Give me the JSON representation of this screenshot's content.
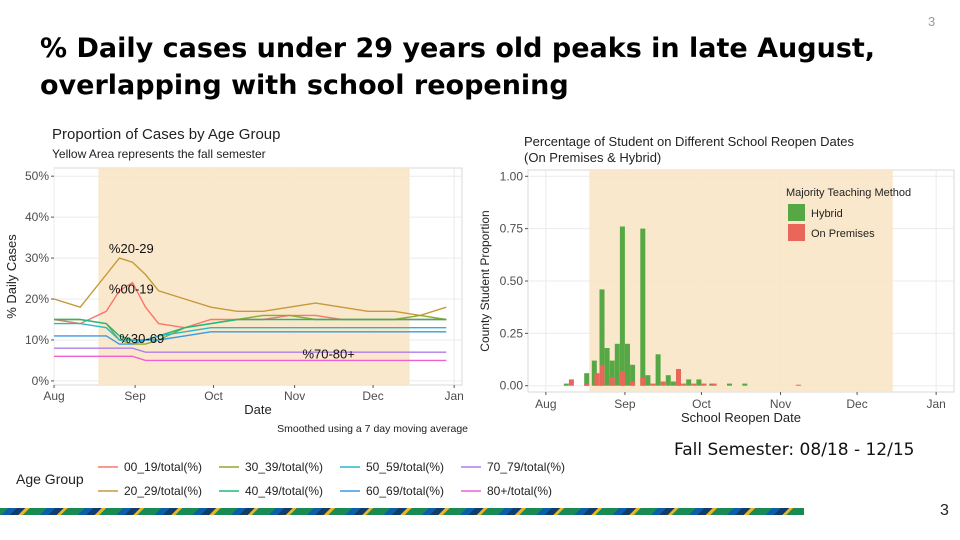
{
  "slide": {
    "number_top": "3",
    "number_bottom": "3"
  },
  "title": {
    "line1": "% Daily cases under 29 years old peaks in late August,",
    "line2": "overlapping with school reopening"
  },
  "note": "Fall Semester: 08/18 - 12/15",
  "colors": {
    "shade": "#fae6c8",
    "hybrid": "#55a844",
    "on_premises": "#e8675a",
    "panel": "#ffffff",
    "grid": "#ebebeb"
  },
  "chart_data": [
    {
      "type": "line",
      "title": "Proportion of Cases by Age Group",
      "subtitle": "Yellow Area represents the fall semester",
      "xlabel": "Date",
      "ylabel": "% Daily Cases",
      "caption": "Smoothed using a 7 day moving average",
      "xlim": [
        0,
        156
      ],
      "ylim": [
        -1,
        52
      ],
      "x_ticks": [
        {
          "v": 0,
          "label": "Aug"
        },
        {
          "v": 31,
          "label": "Sep"
        },
        {
          "v": 61,
          "label": "Oct"
        },
        {
          "v": 92,
          "label": "Nov"
        },
        {
          "v": 122,
          "label": "Dec"
        },
        {
          "v": 153,
          "label": "Jan"
        }
      ],
      "y_ticks": [
        {
          "v": 0,
          "label": "0%"
        },
        {
          "v": 10,
          "label": "10%"
        },
        {
          "v": 20,
          "label": "20%"
        },
        {
          "v": 30,
          "label": "30%"
        },
        {
          "v": 40,
          "label": "40%"
        },
        {
          "v": 50,
          "label": "50%"
        }
      ],
      "shaded_region": [
        17,
        136
      ],
      "legend_title": "Age Group",
      "annotations": [
        {
          "text": "%20-29",
          "x": 21,
          "y": 31.3
        },
        {
          "text": "%00-19",
          "x": 21,
          "y": 21.3
        },
        {
          "text": "%30-69",
          "x": 25,
          "y": 9.3
        },
        {
          "text": "%70-80+",
          "x": 95,
          "y": 5.5
        }
      ],
      "x": [
        0,
        10,
        20,
        25,
        30,
        35,
        40,
        50,
        60,
        70,
        80,
        90,
        100,
        110,
        120,
        130,
        140,
        150
      ],
      "series": [
        {
          "name": "00_19/total(%)",
          "color": "#f8766d",
          "values": [
            15,
            14,
            17,
            22,
            24,
            18,
            14,
            13,
            15,
            15,
            15,
            16,
            16,
            15,
            15,
            15,
            15,
            15
          ]
        },
        {
          "name": "20_29/total(%)",
          "color": "#c49a3a",
          "values": [
            20,
            18,
            26,
            30,
            29,
            26,
            22,
            20,
            18,
            17,
            17,
            18,
            19,
            18,
            17,
            17,
            16,
            18
          ]
        },
        {
          "name": "30_39/total(%)",
          "color": "#8eaa2a",
          "values": [
            15,
            15,
            14,
            10,
            9,
            9,
            10,
            13,
            14,
            15,
            16,
            16,
            15,
            15,
            15,
            15,
            16,
            15
          ]
        },
        {
          "name": "40_49/total(%)",
          "color": "#21b87a",
          "values": [
            15,
            15,
            14,
            11,
            10,
            10,
            11,
            13,
            14,
            15,
            15,
            15,
            15,
            15,
            15,
            15,
            15,
            15
          ]
        },
        {
          "name": "50_59/total(%)",
          "color": "#2ab8c8",
          "values": [
            14,
            14,
            13,
            10,
            10,
            10,
            11,
            12,
            13,
            13,
            13,
            13,
            13,
            13,
            13,
            13,
            13,
            13
          ]
        },
        {
          "name": "60_69/total(%)",
          "color": "#3a9ae0",
          "values": [
            11,
            11,
            11,
            9,
            9,
            10,
            10,
            11,
            12,
            12,
            12,
            12,
            12,
            12,
            12,
            12,
            12,
            12
          ]
        },
        {
          "name": "70_79/total(%)",
          "color": "#b17ee8",
          "values": [
            8,
            8,
            8,
            8,
            8,
            7,
            7,
            7,
            7,
            7,
            7,
            7,
            7,
            7,
            7,
            7,
            7,
            7
          ]
        },
        {
          "name": "80+/total(%)",
          "color": "#f25fd2",
          "values": [
            6,
            6,
            6,
            6,
            6,
            5,
            5,
            5,
            5,
            5,
            5,
            5,
            5,
            5,
            5,
            5,
            5,
            5
          ]
        }
      ]
    },
    {
      "type": "bar",
      "title": "Percentage of Student on Different School Reopen Dates",
      "subtitle": "(On Premises & Hybrid)",
      "xlabel": "School Reopen Date",
      "ylabel": "County Student Proportion",
      "xlim": [
        -7,
        160
      ],
      "ylim": [
        -0.03,
        1.03
      ],
      "x_ticks": [
        {
          "v": 0,
          "label": "Aug"
        },
        {
          "v": 31,
          "label": "Sep"
        },
        {
          "v": 61,
          "label": "Oct"
        },
        {
          "v": 92,
          "label": "Nov"
        },
        {
          "v": 122,
          "label": "Dec"
        },
        {
          "v": 153,
          "label": "Jan"
        }
      ],
      "y_ticks": [
        {
          "v": 0,
          "label": "0.00"
        },
        {
          "v": 0.25,
          "label": "0.25"
        },
        {
          "v": 0.5,
          "label": "0.50"
        },
        {
          "v": 0.75,
          "label": "0.75"
        },
        {
          "v": 1.0,
          "label": "1.00"
        }
      ],
      "shaded_region": [
        17,
        136
      ],
      "legend_title": "Majority Teaching Method",
      "series": [
        {
          "name": "Hybrid",
          "color": "#55a844",
          "x": [
            8,
            16,
            19,
            22,
            24,
            26,
            28,
            30,
            32,
            34,
            38,
            40,
            44,
            48,
            50,
            52,
            56,
            60,
            65,
            72,
            78
          ],
          "values": [
            0.01,
            0.06,
            0.12,
            0.46,
            0.18,
            0.12,
            0.2,
            0.76,
            0.2,
            0.1,
            0.75,
            0.05,
            0.15,
            0.05,
            0.02,
            0.02,
            0.03,
            0.03,
            0.01,
            0.01,
            0.01
          ]
        },
        {
          "name": "On Premises",
          "color": "#e8675a",
          "x": [
            10,
            16,
            20,
            22,
            26,
            30,
            34,
            38,
            42,
            46,
            52,
            54,
            58,
            62,
            66,
            99
          ],
          "values": [
            0.03,
            0.01,
            0.06,
            0.1,
            0.04,
            0.07,
            0.02,
            0.04,
            0.01,
            0.02,
            0.08,
            0.01,
            0.01,
            0.01,
            0.01,
            0.005
          ]
        }
      ]
    }
  ]
}
